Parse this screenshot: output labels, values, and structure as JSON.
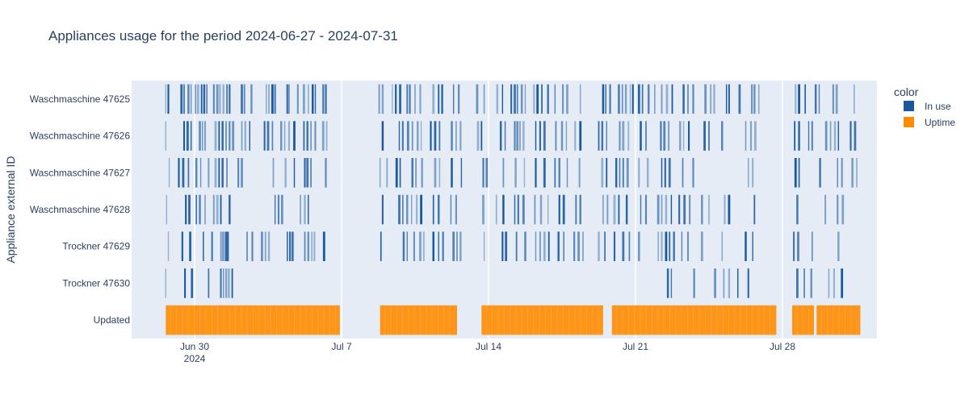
{
  "chart_data": {
    "type": "timeline",
    "title": "Appliances usage for the period 2024-06-27 - 2024-07-31",
    "ylabel": "Appliance external ID",
    "x_range": [
      "2024-06-27T00:00",
      "2024-08-01T12:00"
    ],
    "x_ticks": [
      {
        "date": "2024-06-30",
        "label": "Jun 30",
        "sublabel": "2024"
      },
      {
        "date": "2024-07-07",
        "label": "Jul 7",
        "sublabel": ""
      },
      {
        "date": "2024-07-14",
        "label": "Jul 14",
        "sublabel": ""
      },
      {
        "date": "2024-07-21",
        "label": "Jul 21",
        "sublabel": ""
      },
      {
        "date": "2024-07-28",
        "label": "Jul 28",
        "sublabel": ""
      }
    ],
    "categories": [
      "Waschmaschine 47625",
      "Waschmaschine 47626",
      "Waschmaschine 47627",
      "Waschmaschine 47628",
      "Trockner 47629",
      "Trockner 47630",
      "Updated"
    ],
    "legend": {
      "title": "color",
      "placement": "right",
      "items": [
        {
          "name": "In use",
          "color": "#19589c"
        },
        {
          "name": "Uptime",
          "color": "#ff8c00"
        }
      ]
    },
    "grid": true,
    "series": [
      {
        "name": "In use",
        "category": "Waschmaschine 47625",
        "events": [
          "2024-06-28T15:00",
          "2024-06-28T18:00",
          "2024-06-29T09:00",
          "2024-06-29T12:00",
          "2024-06-29T17:00",
          "2024-06-29T20:00",
          "2024-06-30T01:00",
          "2024-06-30T04:00",
          "2024-06-30T08:00",
          "2024-06-30T11:00",
          "2024-06-30T14:00",
          "2024-06-30T22:00",
          "2024-07-01T02:00",
          "2024-07-01T05:00",
          "2024-07-01T09:00",
          "2024-07-01T13:00",
          "2024-07-01T16:00",
          "2024-07-02T06:00",
          "2024-07-02T09:00",
          "2024-07-02T17:00",
          "2024-07-03T10:00",
          "2024-07-03T13:00",
          "2024-07-03T17:00",
          "2024-07-03T20:00",
          "2024-07-04T10:00",
          "2024-07-04T12:00",
          "2024-07-04T22:00",
          "2024-07-05T05:00",
          "2024-07-05T10:00",
          "2024-07-05T15:00",
          "2024-07-05T18:00",
          "2024-07-06T03:00",
          "2024-07-06T06:00",
          "2024-07-08T19:00",
          "2024-07-08T23:00",
          "2024-07-09T10:00",
          "2024-07-09T14:00",
          "2024-07-09T19:00",
          "2024-07-10T03:00",
          "2024-07-10T06:00",
          "2024-07-10T12:00",
          "2024-07-10T18:00",
          "2024-07-11T09:00",
          "2024-07-11T15:00",
          "2024-07-11T19:00",
          "2024-07-12T08:00",
          "2024-07-12T14:00",
          "2024-07-13T11:00",
          "2024-07-13T19:00",
          "2024-07-14T10:00",
          "2024-07-14T16:00",
          "2024-07-15T02:00",
          "2024-07-15T06:00",
          "2024-07-15T09:00",
          "2024-07-15T14:00",
          "2024-07-15T18:00",
          "2024-07-16T04:00",
          "2024-07-16T08:00",
          "2024-07-16T13:00",
          "2024-07-16T20:00",
          "2024-07-17T04:00",
          "2024-07-17T13:00",
          "2024-07-17T18:00",
          "2024-07-18T09:00",
          "2024-07-19T11:00",
          "2024-07-19T14:00",
          "2024-07-19T19:00",
          "2024-07-20T05:00",
          "2024-07-20T09:00",
          "2024-07-20T13:00",
          "2024-07-20T18:00",
          "2024-07-20T21:00",
          "2024-07-21T04:00",
          "2024-07-21T08:00",
          "2024-07-21T15:00",
          "2024-07-21T22:00",
          "2024-07-22T06:00",
          "2024-07-22T12:00",
          "2024-07-22T18:00",
          "2024-07-23T07:00",
          "2024-07-23T12:00",
          "2024-07-23T18:00",
          "2024-07-24T08:00",
          "2024-07-24T14:00",
          "2024-07-24T18:00",
          "2024-07-25T08:00",
          "2024-07-25T11:00",
          "2024-07-25T23:00",
          "2024-07-26T13:00",
          "2024-07-26T16:00",
          "2024-07-26T21:00",
          "2024-07-28T15:00",
          "2024-07-28T19:00",
          "2024-07-29T02:00",
          "2024-07-29T14:00",
          "2024-07-29T18:00",
          "2024-07-30T10:00",
          "2024-07-30T14:00",
          "2024-07-31T10:00"
        ]
      },
      {
        "name": "In use",
        "category": "Waschmaschine 47626",
        "events": [
          "2024-06-28T15:00",
          "2024-06-29T12:00",
          "2024-06-29T16:00",
          "2024-06-29T20:00",
          "2024-06-30T06:00",
          "2024-06-30T09:00",
          "2024-06-30T12:00",
          "2024-07-01T00:00",
          "2024-07-01T04:00",
          "2024-07-01T08:00",
          "2024-07-01T12:00",
          "2024-07-01T16:00",
          "2024-07-01T20:00",
          "2024-07-02T06:00",
          "2024-07-02T10:00",
          "2024-07-02T15:00",
          "2024-07-03T08:00",
          "2024-07-03T12:00",
          "2024-07-03T17:00",
          "2024-07-04T03:00",
          "2024-07-04T07:00",
          "2024-07-04T12:00",
          "2024-07-04T18:00",
          "2024-07-05T05:00",
          "2024-07-05T09:00",
          "2024-07-05T13:00",
          "2024-07-05T18:00",
          "2024-07-06T03:00",
          "2024-07-06T07:00",
          "2024-07-08T23:00",
          "2024-07-09T18:00",
          "2024-07-09T22:00",
          "2024-07-10T04:00",
          "2024-07-10T09:00",
          "2024-07-10T15:00",
          "2024-07-10T19:00",
          "2024-07-11T06:00",
          "2024-07-11T11:00",
          "2024-07-11T16:00",
          "2024-07-12T06:00",
          "2024-07-12T11:00",
          "2024-07-12T16:00",
          "2024-07-13T12:00",
          "2024-07-13T16:00",
          "2024-07-14T14:00",
          "2024-07-14T19:00",
          "2024-07-15T06:00",
          "2024-07-15T09:00",
          "2024-07-15T12:00",
          "2024-07-15T16:00",
          "2024-07-16T06:00",
          "2024-07-16T11:00",
          "2024-07-16T16:00",
          "2024-07-17T05:00",
          "2024-07-17T12:00",
          "2024-07-17T17:00",
          "2024-07-18T03:00",
          "2024-07-18T09:00",
          "2024-07-19T06:00",
          "2024-07-19T10:00",
          "2024-07-19T15:00",
          "2024-07-20T06:00",
          "2024-07-20T10:00",
          "2024-07-20T16:00",
          "2024-07-21T06:00",
          "2024-07-21T12:00",
          "2024-07-22T05:00",
          "2024-07-22T09:00",
          "2024-07-22T14:00",
          "2024-07-23T03:00",
          "2024-07-23T07:00",
          "2024-07-23T13:00",
          "2024-07-24T07:00",
          "2024-07-24T12:00",
          "2024-07-25T03:00",
          "2024-07-26T06:00",
          "2024-07-26T12:00",
          "2024-07-26T17:00",
          "2024-07-28T14:00",
          "2024-07-28T19:00",
          "2024-07-29T06:00",
          "2024-07-29T10:00",
          "2024-07-30T02:00",
          "2024-07-30T07:00",
          "2024-07-30T12:00",
          "2024-07-30T16:00",
          "2024-07-31T06:00",
          "2024-07-31T11:00"
        ]
      },
      {
        "name": "In use",
        "category": "Waschmaschine 47627",
        "events": [
          "2024-06-28T19:00",
          "2024-06-29T06:00",
          "2024-06-29T11:00",
          "2024-06-29T17:00",
          "2024-06-30T02:00",
          "2024-06-30T07:00",
          "2024-06-30T16:00",
          "2024-07-01T00:00",
          "2024-07-01T04:00",
          "2024-07-01T08:00",
          "2024-07-01T13:00",
          "2024-07-02T02:00",
          "2024-07-02T06:00",
          "2024-07-03T18:00",
          "2024-07-04T08:00",
          "2024-07-04T18:00",
          "2024-07-05T06:00",
          "2024-07-05T09:00",
          "2024-07-05T13:00",
          "2024-07-06T06:00",
          "2024-07-08T20:00",
          "2024-07-09T04:00",
          "2024-07-09T15:00",
          "2024-07-09T19:00",
          "2024-07-10T09:00",
          "2024-07-10T13:00",
          "2024-07-10T20:00",
          "2024-07-11T11:00",
          "2024-07-11T16:00",
          "2024-07-12T06:00",
          "2024-07-12T17:00",
          "2024-07-13T18:00",
          "2024-07-13T22:00",
          "2024-07-14T17:00",
          "2024-07-15T07:00",
          "2024-07-15T17:00",
          "2024-07-16T06:00",
          "2024-07-16T16:00",
          "2024-07-17T04:00",
          "2024-07-17T09:00",
          "2024-07-17T18:00",
          "2024-07-18T08:00",
          "2024-07-19T10:00",
          "2024-07-19T15:00",
          "2024-07-20T02:00",
          "2024-07-20T06:00",
          "2024-07-20T10:00",
          "2024-07-20T15:00",
          "2024-07-21T04:00",
          "2024-07-21T14:00",
          "2024-07-22T06:00",
          "2024-07-22T10:00",
          "2024-07-22T15:00",
          "2024-07-23T06:00",
          "2024-07-23T18:00",
          "2024-07-26T09:00",
          "2024-07-26T14:00",
          "2024-07-28T15:00",
          "2024-07-28T19:00",
          "2024-07-29T19:00",
          "2024-07-30T15:00",
          "2024-07-30T20:00",
          "2024-07-31T08:00",
          "2024-07-31T13:00"
        ]
      },
      {
        "name": "In use",
        "category": "Waschmaschine 47628",
        "events": [
          "2024-06-28T16:00",
          "2024-06-29T14:00",
          "2024-06-29T18:00",
          "2024-06-30T02:00",
          "2024-06-30T06:00",
          "2024-06-30T12:00",
          "2024-06-30T22:00",
          "2024-07-01T02:00",
          "2024-07-01T06:00",
          "2024-07-01T16:00",
          "2024-07-03T20:00",
          "2024-07-04T00:00",
          "2024-07-04T04:00",
          "2024-07-05T01:00",
          "2024-07-05T06:00",
          "2024-07-05T10:00",
          "2024-07-08T23:00",
          "2024-07-09T18:00",
          "2024-07-09T22:00",
          "2024-07-10T03:00",
          "2024-07-10T08:00",
          "2024-07-10T14:00",
          "2024-07-10T19:00",
          "2024-07-11T09:00",
          "2024-07-11T15:00",
          "2024-07-12T05:00",
          "2024-07-12T11:00",
          "2024-07-13T18:00",
          "2024-07-14T09:00",
          "2024-07-14T17:00",
          "2024-07-15T06:00",
          "2024-07-15T10:00",
          "2024-07-15T16:00",
          "2024-07-16T05:00",
          "2024-07-16T12:00",
          "2024-07-16T20:00",
          "2024-07-17T09:00",
          "2024-07-17T14:00",
          "2024-07-18T04:00",
          "2024-07-18T09:00",
          "2024-07-19T11:00",
          "2024-07-19T16:00",
          "2024-07-20T00:00",
          "2024-07-20T05:00",
          "2024-07-20T14:00",
          "2024-07-21T06:00",
          "2024-07-21T12:00",
          "2024-07-22T02:00",
          "2024-07-22T06:00",
          "2024-07-22T11:00",
          "2024-07-22T17:00",
          "2024-07-23T02:00",
          "2024-07-23T08:00",
          "2024-07-23T14:00",
          "2024-07-24T04:00",
          "2024-07-24T12:00",
          "2024-07-25T06:00",
          "2024-07-25T11:00",
          "2024-07-26T16:00",
          "2024-07-28T17:00",
          "2024-07-30T01:00",
          "2024-07-30T15:00",
          "2024-07-30T21:00"
        ]
      },
      {
        "name": "In use",
        "category": "Trockner 47629",
        "events": [
          "2024-06-28T18:00",
          "2024-06-29T10:00",
          "2024-06-29T19:00",
          "2024-06-30T10:00",
          "2024-06-30T20:00",
          "2024-07-01T06:00",
          "2024-07-01T08:00",
          "2024-07-01T10:00",
          "2024-07-01T12:00",
          "2024-07-01T14:00",
          "2024-07-02T12:00",
          "2024-07-02T18:00",
          "2024-07-03T05:00",
          "2024-07-03T09:00",
          "2024-07-03T13:00",
          "2024-07-04T10:00",
          "2024-07-04T13:00",
          "2024-07-04T16:00",
          "2024-07-05T06:00",
          "2024-07-05T10:00",
          "2024-07-05T14:00",
          "2024-07-05T17:00",
          "2024-07-06T04:00",
          "2024-07-08T21:00",
          "2024-07-09T23:00",
          "2024-07-10T03:00",
          "2024-07-10T11:00",
          "2024-07-10T18:00",
          "2024-07-10T22:00",
          "2024-07-11T09:00",
          "2024-07-11T15:00",
          "2024-07-11T20:00",
          "2024-07-12T08:00",
          "2024-07-12T12:00",
          "2024-07-12T16:00",
          "2024-07-13T19:00",
          "2024-07-14T16:00",
          "2024-07-14T20:00",
          "2024-07-15T08:00",
          "2024-07-15T18:00",
          "2024-07-16T06:00",
          "2024-07-16T11:00",
          "2024-07-16T16:00",
          "2024-07-16T21:00",
          "2024-07-17T08:00",
          "2024-07-17T14:00",
          "2024-07-18T02:00",
          "2024-07-18T07:00",
          "2024-07-18T12:00",
          "2024-07-19T06:00",
          "2024-07-19T13:00",
          "2024-07-20T00:00",
          "2024-07-20T10:00",
          "2024-07-20T17:00",
          "2024-07-21T04:00",
          "2024-07-22T02:00",
          "2024-07-22T06:00",
          "2024-07-22T11:00",
          "2024-07-22T15:00",
          "2024-07-22T20:00",
          "2024-07-23T05:00",
          "2024-07-23T12:00",
          "2024-07-24T04:00",
          "2024-07-25T03:00",
          "2024-07-26T06:00",
          "2024-07-26T14:00",
          "2024-07-28T13:00",
          "2024-07-28T18:00",
          "2024-07-29T10:00",
          "2024-07-30T16:00"
        ]
      },
      {
        "name": "In use",
        "category": "Trockner 47630",
        "events": [
          "2024-06-28T15:00",
          "2024-06-29T13:00",
          "2024-06-29T21:00",
          "2024-06-30T16:00",
          "2024-07-01T06:00",
          "2024-07-01T09:00",
          "2024-07-01T12:00",
          "2024-07-01T15:00",
          "2024-07-01T19:00",
          "2024-07-22T13:00",
          "2024-07-22T17:00",
          "2024-07-23T19:00",
          "2024-07-24T19:00",
          "2024-07-25T05:00",
          "2024-07-25T11:00",
          "2024-07-25T21:00",
          "2024-07-26T09:00",
          "2024-07-28T17:00",
          "2024-07-29T01:00",
          "2024-07-29T09:00",
          "2024-07-30T05:00",
          "2024-07-30T11:00",
          "2024-07-30T20:00"
        ]
      }
    ],
    "uptime": {
      "name": "Uptime",
      "category": "Updated",
      "intervals": [
        [
          "2024-06-28T15:00",
          "2024-07-06T22:00"
        ],
        [
          "2024-07-08T20:00",
          "2024-07-12T12:00"
        ],
        [
          "2024-07-13T16:00",
          "2024-07-19T11:00"
        ],
        [
          "2024-07-19T21:00",
          "2024-07-27T17:00"
        ],
        [
          "2024-07-28T11:00",
          "2024-07-29T12:00"
        ],
        [
          "2024-07-29T15:00",
          "2024-07-31T17:00"
        ]
      ]
    }
  }
}
